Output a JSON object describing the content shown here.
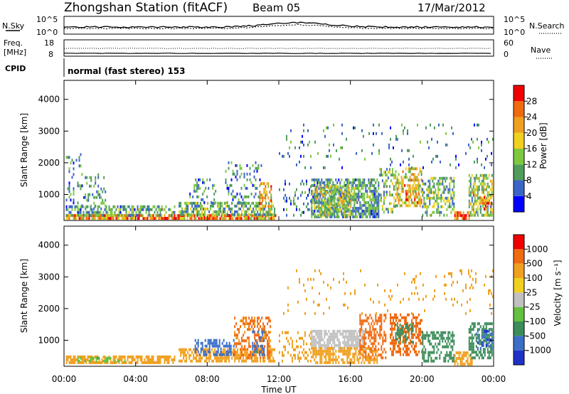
{
  "header": {
    "station_title": "Zhongshan Station (fitACF)",
    "beam": "Beam 05",
    "date": "17/Mar/2012"
  },
  "top_panels": {
    "nsky_label": "N.Sky",
    "nsearch_label": "N.Search",
    "noise_left_ticks": [
      "10^5",
      "10^0"
    ],
    "noise_right_ticks": [
      "10^5",
      "10^0"
    ],
    "freq_label_1": "Freq.",
    "freq_label_2": "[MHz]",
    "freq_ticks": [
      "18",
      "8"
    ],
    "nave_label": "Nave",
    "nave_ticks": [
      "60",
      "0"
    ],
    "cpid_label": "CPID",
    "cpid_value": "normal (fast stereo) 153"
  },
  "colorbars": {
    "power": {
      "label": "Power [dB]",
      "ticks": [
        "28",
        "24",
        "20",
        "16",
        "12",
        "8",
        "4"
      ],
      "colors": [
        "#0000ff",
        "#3c64c8",
        "#4f9c5c",
        "#7ec840",
        "#f0d020",
        "#f0a020",
        "#f06a10",
        "#f00000"
      ]
    },
    "velocity": {
      "label": "Velocity [m s⁻¹]",
      "ticks": [
        "1000",
        "500",
        "100",
        "25",
        "-25",
        "-100",
        "-500",
        "-1000"
      ],
      "colors": [
        "#1e32c8",
        "#3c6ec8",
        "#3c8c5a",
        "#64c040",
        "#c0c0c0",
        "#f0d020",
        "#f0a020",
        "#f06a10",
        "#f00000"
      ]
    }
  },
  "chart_data": [
    {
      "type": "heatmap",
      "panel": "power",
      "ylabel": "Slant Range [km]",
      "yticks": [
        1000,
        2000,
        3000,
        4000
      ],
      "ylim": [
        180,
        4600
      ],
      "x_range_hours": [
        0,
        24
      ],
      "colorbar_range_db": [
        0,
        32
      ],
      "blobs": [
        {
          "t0": 0.1,
          "t1": 11.8,
          "r0": 200,
          "r1": 320,
          "v": 24,
          "d": 0.85
        },
        {
          "t0": 0.1,
          "t1": 6.2,
          "r0": 300,
          "r1": 600,
          "v": 10,
          "d": 0.55
        },
        {
          "t0": 0.1,
          "t1": 1.0,
          "r0": 600,
          "r1": 2300,
          "v": 8,
          "d": 0.12
        },
        {
          "t0": 1.0,
          "t1": 2.3,
          "r0": 500,
          "r1": 1600,
          "v": 9,
          "d": 0.2
        },
        {
          "t0": 6.4,
          "t1": 11.8,
          "r0": 320,
          "r1": 700,
          "v": 12,
          "d": 0.6
        },
        {
          "t0": 7.0,
          "t1": 8.5,
          "r0": 700,
          "r1": 1500,
          "v": 9,
          "d": 0.25
        },
        {
          "t0": 9.0,
          "t1": 11.0,
          "r0": 700,
          "r1": 2000,
          "v": 9,
          "d": 0.22
        },
        {
          "t0": 10.9,
          "t1": 11.6,
          "r0": 400,
          "r1": 1300,
          "v": 20,
          "d": 0.5
        },
        {
          "t0": 12.0,
          "t1": 13.8,
          "r0": 300,
          "r1": 1400,
          "v": 8,
          "d": 0.15
        },
        {
          "t0": 13.8,
          "t1": 17.6,
          "r0": 250,
          "r1": 1500,
          "v": 10,
          "d": 0.7
        },
        {
          "t0": 14.0,
          "t1": 16.0,
          "r0": 300,
          "r1": 1200,
          "v": 16,
          "d": 0.5
        },
        {
          "t0": 17.6,
          "t1": 18.5,
          "r0": 400,
          "r1": 1800,
          "v": 13,
          "d": 0.35
        },
        {
          "t0": 18.5,
          "t1": 20.0,
          "r0": 600,
          "r1": 1800,
          "v": 18,
          "d": 0.55
        },
        {
          "t0": 19.0,
          "t1": 19.8,
          "r0": 700,
          "r1": 1300,
          "v": 24,
          "d": 0.5
        },
        {
          "t0": 20.0,
          "t1": 21.8,
          "r0": 300,
          "r1": 1500,
          "v": 12,
          "d": 0.5
        },
        {
          "t0": 21.8,
          "t1": 22.6,
          "r0": 200,
          "r1": 400,
          "v": 26,
          "d": 0.8
        },
        {
          "t0": 22.6,
          "t1": 23.9,
          "r0": 300,
          "r1": 1600,
          "v": 14,
          "d": 0.55
        },
        {
          "t0": 23.2,
          "t1": 23.9,
          "r0": 500,
          "r1": 900,
          "v": 22,
          "d": 0.6
        },
        {
          "t0": 12.0,
          "t1": 24.0,
          "r0": 1800,
          "r1": 3200,
          "v": 8,
          "d": 0.05
        }
      ]
    },
    {
      "type": "heatmap",
      "panel": "velocity",
      "ylabel": "Slant Range [km]",
      "yticks": [
        1000,
        2000,
        3000,
        4000
      ],
      "ylim": [
        180,
        4600
      ],
      "x_range_hours": [
        0,
        24
      ],
      "blobs": [
        {
          "t0": 0.1,
          "t1": 6.2,
          "r0": 250,
          "r1": 500,
          "v": -150,
          "d": 0.7
        },
        {
          "t0": 0.5,
          "t1": 3.5,
          "r0": 300,
          "r1": 450,
          "v": 80,
          "d": 0.4
        },
        {
          "t0": 6.4,
          "t1": 11.8,
          "r0": 300,
          "r1": 700,
          "v": -300,
          "d": 0.6
        },
        {
          "t0": 7.3,
          "t1": 9.5,
          "r0": 500,
          "r1": 1000,
          "v": 800,
          "d": 0.55
        },
        {
          "t0": 9.5,
          "t1": 11.5,
          "r0": 400,
          "r1": 1700,
          "v": -600,
          "d": 0.45
        },
        {
          "t0": 10.5,
          "t1": 11.2,
          "r0": 500,
          "r1": 1300,
          "v": 600,
          "d": 0.4
        },
        {
          "t0": 12.0,
          "t1": 13.8,
          "r0": 300,
          "r1": 1200,
          "v": -200,
          "d": 0.25
        },
        {
          "t0": 13.8,
          "t1": 16.8,
          "r0": 700,
          "r1": 1300,
          "v": 0,
          "d": 0.8
        },
        {
          "t0": 13.8,
          "t1": 17.5,
          "r0": 250,
          "r1": 700,
          "v": -300,
          "d": 0.6
        },
        {
          "t0": 16.5,
          "t1": 18.0,
          "r0": 400,
          "r1": 1800,
          "v": -700,
          "d": 0.45
        },
        {
          "t0": 18.2,
          "t1": 20.0,
          "r0": 500,
          "r1": 1800,
          "v": -700,
          "d": 0.5
        },
        {
          "t0": 18.5,
          "t1": 19.5,
          "r0": 900,
          "r1": 1500,
          "v": 200,
          "d": 0.4
        },
        {
          "t0": 20.0,
          "t1": 21.8,
          "r0": 300,
          "r1": 1200,
          "v": 300,
          "d": 0.45
        },
        {
          "t0": 21.8,
          "t1": 22.8,
          "r0": 200,
          "r1": 600,
          "v": -400,
          "d": 0.7
        },
        {
          "t0": 22.6,
          "t1": 23.9,
          "r0": 400,
          "r1": 1500,
          "v": 150,
          "d": 0.55
        },
        {
          "t0": 23.0,
          "t1": 23.9,
          "r0": 700,
          "r1": 1300,
          "v": 900,
          "d": 0.5
        },
        {
          "t0": 12.0,
          "t1": 24.0,
          "r0": 1800,
          "r1": 3200,
          "v": -200,
          "d": 0.05
        }
      ]
    }
  ],
  "xaxis": {
    "label": "Time UT",
    "ticks": [
      "00:00",
      "04:00",
      "08:00",
      "12:00",
      "16:00",
      "20:00",
      "00:00"
    ]
  }
}
